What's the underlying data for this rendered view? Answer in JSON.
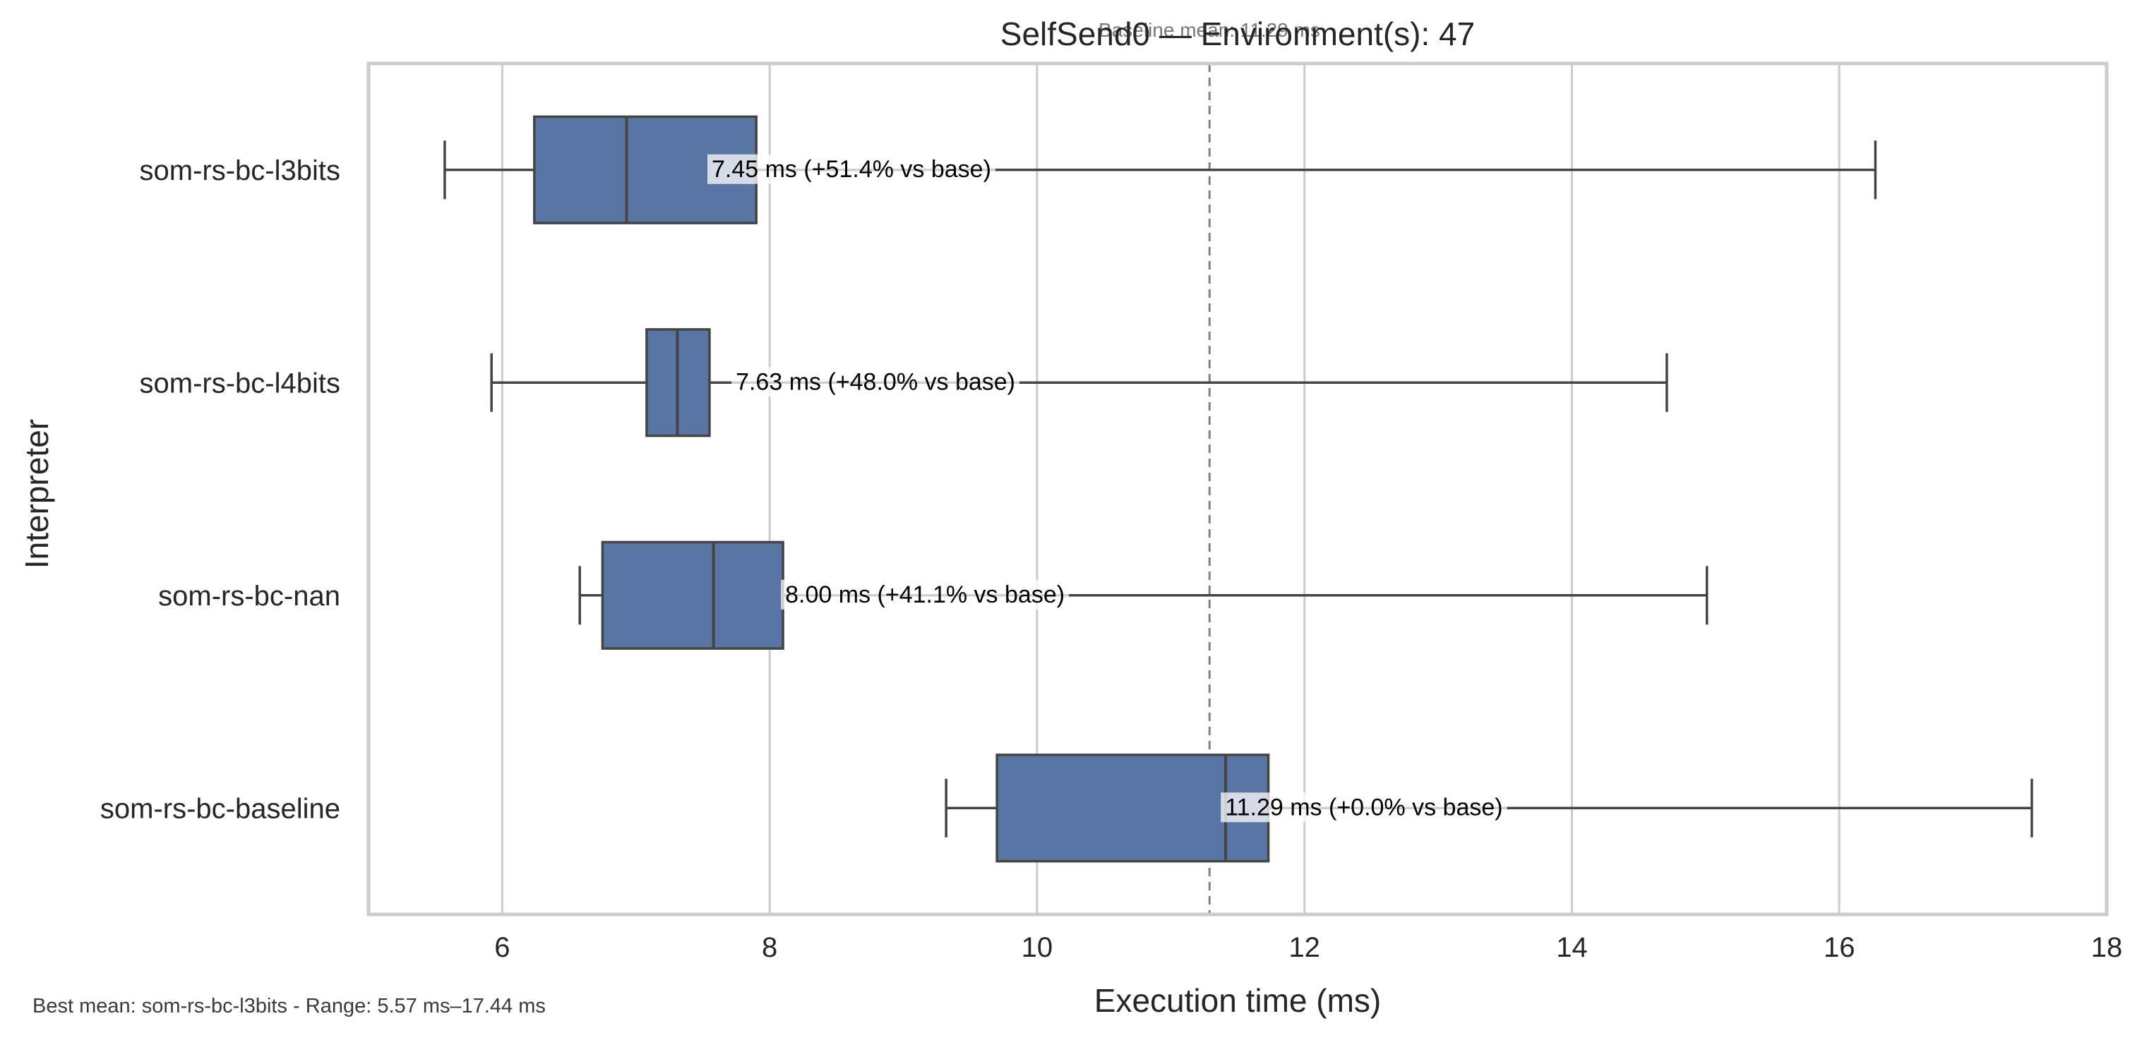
{
  "chart_data": {
    "type": "boxplot",
    "orientation": "horizontal",
    "title": "SelfSend0 — Environment(s): 47",
    "subtitle": "Baseline mean: 11.29 ms",
    "xlabel": "Execution time (ms)",
    "ylabel": "Interpreter",
    "xlim": [
      5,
      18
    ],
    "xticks": [
      6,
      8,
      10,
      12,
      14,
      16,
      18
    ],
    "grid": "vertical",
    "reference_line": {
      "value": 11.29,
      "style": "dashed"
    },
    "categories": [
      "som-rs-bc-l3bits",
      "som-rs-bc-l4bits",
      "som-rs-bc-nan",
      "som-rs-bc-baseline"
    ],
    "boxes": [
      {
        "name": "som-rs-bc-l3bits",
        "whisker_low": 5.57,
        "q1": 6.24,
        "median": 6.93,
        "q3": 7.9,
        "whisker_high": 16.27,
        "mean": 7.45,
        "label": "7.45 ms  (+51.4% vs base)"
      },
      {
        "name": "som-rs-bc-l4bits",
        "whisker_low": 5.92,
        "q1": 7.08,
        "median": 7.31,
        "q3": 7.55,
        "whisker_high": 14.71,
        "mean": 7.63,
        "label": "7.63 ms  (+48.0% vs base)"
      },
      {
        "name": "som-rs-bc-nan",
        "whisker_low": 6.58,
        "q1": 6.75,
        "median": 7.58,
        "q3": 8.1,
        "whisker_high": 15.01,
        "mean": 8.0,
        "label": "8.00 ms  (+41.1% vs base)"
      },
      {
        "name": "som-rs-bc-baseline",
        "whisker_low": 9.32,
        "q1": 9.7,
        "median": 11.41,
        "q3": 11.73,
        "whisker_high": 17.44,
        "mean": 11.29,
        "label": "11.29 ms  (+0.0% vs base)"
      }
    ],
    "box_color": "#5875a4",
    "line_color": "#444444",
    "footer": "Best mean: som-rs-bc-l3bits - Range: 5.57 ms–17.44 ms"
  }
}
